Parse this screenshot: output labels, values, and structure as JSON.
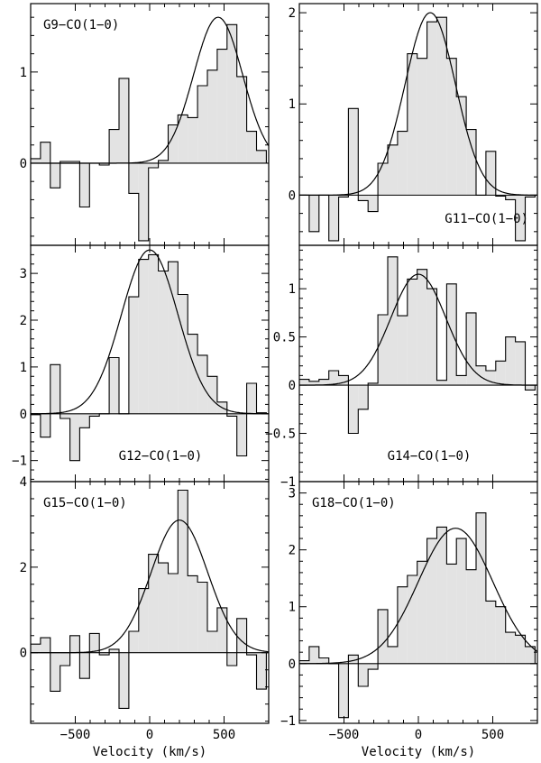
{
  "chart_data": [
    {
      "type": "bar",
      "label": "G9-CO(1-0)",
      "label_placement": "top-left",
      "x_range": [
        -800,
        800
      ],
      "ylim": [
        -0.9,
        1.75
      ],
      "yticks": [
        0,
        1
      ],
      "bin_width_kms": 66,
      "spectrum": [
        {
          "v": -800,
          "f": 0.05
        },
        {
          "v": -734,
          "f": 0.23
        },
        {
          "v": -668,
          "f": -0.27
        },
        {
          "v": -602,
          "f": 0.02
        },
        {
          "v": -536,
          "f": 0.02
        },
        {
          "v": -470,
          "f": -0.48
        },
        {
          "v": -404,
          "f": 0.0
        },
        {
          "v": -338,
          "f": -0.02
        },
        {
          "v": -272,
          "f": 0.37
        },
        {
          "v": -206,
          "f": 0.93
        },
        {
          "v": -140,
          "f": -0.33
        },
        {
          "v": -74,
          "f": -0.85
        },
        {
          "v": -8,
          "f": -0.05
        },
        {
          "v": 58,
          "f": 0.03
        },
        {
          "v": 124,
          "f": 0.42
        },
        {
          "v": 190,
          "f": 0.53
        },
        {
          "v": 256,
          "f": 0.5
        },
        {
          "v": 322,
          "f": 0.85
        },
        {
          "v": 388,
          "f": 1.02
        },
        {
          "v": 454,
          "f": 1.25
        },
        {
          "v": 520,
          "f": 1.52
        },
        {
          "v": 586,
          "f": 0.95
        },
        {
          "v": 652,
          "f": 0.35
        },
        {
          "v": 718,
          "f": 0.14
        }
      ],
      "gaussian_fit": {
        "amplitude": 1.6,
        "center": 460,
        "sigma": 165
      }
    },
    {
      "type": "bar",
      "label": "G11-CO(1-0)",
      "label_placement": "bottom-right",
      "x_range": [
        -800,
        800
      ],
      "ylim": [
        -0.55,
        2.1
      ],
      "yticks": [
        0,
        1,
        2
      ],
      "bin_width_kms": 66,
      "spectrum": [
        {
          "v": -800,
          "f": 0.0
        },
        {
          "v": -734,
          "f": -0.4
        },
        {
          "v": -668,
          "f": 0.0
        },
        {
          "v": -602,
          "f": -0.5
        },
        {
          "v": -536,
          "f": -0.02
        },
        {
          "v": -470,
          "f": 0.95
        },
        {
          "v": -404,
          "f": -0.06
        },
        {
          "v": -338,
          "f": -0.18
        },
        {
          "v": -272,
          "f": 0.35
        },
        {
          "v": -206,
          "f": 0.55
        },
        {
          "v": -140,
          "f": 0.7
        },
        {
          "v": -74,
          "f": 1.55
        },
        {
          "v": -8,
          "f": 1.5
        },
        {
          "v": 58,
          "f": 1.9
        },
        {
          "v": 124,
          "f": 1.95
        },
        {
          "v": 190,
          "f": 1.5
        },
        {
          "v": 256,
          "f": 1.08
        },
        {
          "v": 322,
          "f": 0.72
        },
        {
          "v": 388,
          "f": 0.0
        },
        {
          "v": 454,
          "f": 0.48
        },
        {
          "v": 520,
          "f": -0.01
        },
        {
          "v": 586,
          "f": -0.05
        },
        {
          "v": 652,
          "f": -0.5
        },
        {
          "v": 718,
          "f": -0.02
        }
      ],
      "gaussian_fit": {
        "amplitude": 2.0,
        "center": 80,
        "sigma": 170
      }
    },
    {
      "type": "bar",
      "label": "G12-CO(1-0)",
      "label_placement": "bottom-center",
      "x_range": [
        -800,
        800
      ],
      "ylim": [
        -1.45,
        3.6
      ],
      "yticks": [
        -1,
        0,
        1,
        2,
        3
      ],
      "bin_width_kms": 66,
      "spectrum": [
        {
          "v": -800,
          "f": -0.02
        },
        {
          "v": -734,
          "f": -0.5
        },
        {
          "v": -668,
          "f": 1.05
        },
        {
          "v": -602,
          "f": -0.1
        },
        {
          "v": -536,
          "f": -1.0
        },
        {
          "v": -470,
          "f": -0.3
        },
        {
          "v": -404,
          "f": -0.05
        },
        {
          "v": -338,
          "f": 0.0
        },
        {
          "v": -272,
          "f": 1.2
        },
        {
          "v": -206,
          "f": 0.0
        },
        {
          "v": -140,
          "f": 2.5
        },
        {
          "v": -74,
          "f": 3.3
        },
        {
          "v": -8,
          "f": 3.4
        },
        {
          "v": 58,
          "f": 3.05
        },
        {
          "v": 124,
          "f": 3.25
        },
        {
          "v": 190,
          "f": 2.55
        },
        {
          "v": 256,
          "f": 1.7
        },
        {
          "v": 322,
          "f": 1.25
        },
        {
          "v": 388,
          "f": 0.8
        },
        {
          "v": 454,
          "f": 0.25
        },
        {
          "v": 520,
          "f": -0.05
        },
        {
          "v": 586,
          "f": -0.9
        },
        {
          "v": 652,
          "f": 0.65
        },
        {
          "v": 718,
          "f": 0.02
        }
      ],
      "gaussian_fit": {
        "amplitude": 3.5,
        "center": 0,
        "sigma": 190
      }
    },
    {
      "type": "bar",
      "label": "G14-CO(1-0)",
      "label_placement": "bottom-center",
      "x_range": [
        -800,
        800
      ],
      "ylim": [
        -1.0,
        1.45
      ],
      "yticks": [
        -1,
        -0.5,
        0,
        0.5,
        1
      ],
      "bin_width_kms": 66,
      "spectrum": [
        {
          "v": -800,
          "f": 0.06
        },
        {
          "v": -734,
          "f": 0.04
        },
        {
          "v": -668,
          "f": 0.06
        },
        {
          "v": -602,
          "f": 0.15
        },
        {
          "v": -536,
          "f": 0.1
        },
        {
          "v": -470,
          "f": -0.5
        },
        {
          "v": -404,
          "f": -0.25
        },
        {
          "v": -338,
          "f": 0.02
        },
        {
          "v": -272,
          "f": 0.73
        },
        {
          "v": -206,
          "f": 1.33
        },
        {
          "v": -140,
          "f": 0.72
        },
        {
          "v": -74,
          "f": 1.1
        },
        {
          "v": -8,
          "f": 1.2
        },
        {
          "v": 58,
          "f": 1.0
        },
        {
          "v": 124,
          "f": 0.05
        },
        {
          "v": 190,
          "f": 1.05
        },
        {
          "v": 256,
          "f": 0.1
        },
        {
          "v": 322,
          "f": 0.75
        },
        {
          "v": 388,
          "f": 0.2
        },
        {
          "v": 454,
          "f": 0.15
        },
        {
          "v": 520,
          "f": 0.25
        },
        {
          "v": 586,
          "f": 0.5
        },
        {
          "v": 652,
          "f": 0.45
        },
        {
          "v": 718,
          "f": -0.05
        }
      ],
      "gaussian_fit": {
        "amplitude": 1.15,
        "center": 0,
        "sigma": 185
      }
    },
    {
      "type": "bar",
      "label": "G15-CO(1-0)",
      "label_placement": "top-left",
      "x_range": [
        -800,
        800
      ],
      "ylim": [
        -1.65,
        4.0
      ],
      "yticks": [
        0,
        2,
        4
      ],
      "xticks": [
        -500,
        0,
        500
      ],
      "bin_width_kms": 66,
      "spectrum": [
        {
          "v": -800,
          "f": 0.2
        },
        {
          "v": -734,
          "f": 0.35
        },
        {
          "v": -668,
          "f": -0.9
        },
        {
          "v": -602,
          "f": -0.3
        },
        {
          "v": -536,
          "f": 0.4
        },
        {
          "v": -470,
          "f": -0.6
        },
        {
          "v": -404,
          "f": 0.45
        },
        {
          "v": -338,
          "f": -0.05
        },
        {
          "v": -272,
          "f": 0.08
        },
        {
          "v": -206,
          "f": -1.3
        },
        {
          "v": -140,
          "f": 0.5
        },
        {
          "v": -74,
          "f": 1.5
        },
        {
          "v": -8,
          "f": 2.3
        },
        {
          "v": 58,
          "f": 2.1
        },
        {
          "v": 124,
          "f": 1.85
        },
        {
          "v": 190,
          "f": 3.8
        },
        {
          "v": 256,
          "f": 1.8
        },
        {
          "v": 322,
          "f": 1.65
        },
        {
          "v": 388,
          "f": 0.5
        },
        {
          "v": 454,
          "f": 1.05
        },
        {
          "v": 520,
          "f": -0.3
        },
        {
          "v": 586,
          "f": 0.8
        },
        {
          "v": 652,
          "f": -0.05
        },
        {
          "v": 718,
          "f": -0.85
        }
      ],
      "gaussian_fit": {
        "amplitude": 3.1,
        "center": 200,
        "sigma": 190
      },
      "xlabel": "Velocity (km/s)"
    },
    {
      "type": "bar",
      "label": "G18-CO(1-0)",
      "label_placement": "top-left",
      "x_range": [
        -800,
        800
      ],
      "ylim": [
        -1.05,
        3.2
      ],
      "yticks": [
        -1,
        0,
        1,
        2,
        3
      ],
      "xticks": [
        -500,
        0,
        500
      ],
      "bin_width_kms": 66,
      "spectrum": [
        {
          "v": -800,
          "f": 0.05
        },
        {
          "v": -734,
          "f": 0.3
        },
        {
          "v": -668,
          "f": 0.1
        },
        {
          "v": -602,
          "f": 0.0
        },
        {
          "v": -536,
          "f": -0.95
        },
        {
          "v": -470,
          "f": 0.15
        },
        {
          "v": -404,
          "f": -0.4
        },
        {
          "v": -338,
          "f": -0.1
        },
        {
          "v": -272,
          "f": 0.95
        },
        {
          "v": -206,
          "f": 0.3
        },
        {
          "v": -140,
          "f": 1.35
        },
        {
          "v": -74,
          "f": 1.55
        },
        {
          "v": -8,
          "f": 1.8
        },
        {
          "v": 58,
          "f": 2.2
        },
        {
          "v": 124,
          "f": 2.4
        },
        {
          "v": 190,
          "f": 1.75
        },
        {
          "v": 256,
          "f": 2.2
        },
        {
          "v": 322,
          "f": 1.65
        },
        {
          "v": 388,
          "f": 2.65
        },
        {
          "v": 454,
          "f": 1.1
        },
        {
          "v": 520,
          "f": 1.0
        },
        {
          "v": 586,
          "f": 0.55
        },
        {
          "v": 652,
          "f": 0.5
        },
        {
          "v": 718,
          "f": 0.3
        }
      ],
      "gaussian_fit": {
        "amplitude": 2.38,
        "center": 250,
        "sigma": 250
      },
      "xlabel": "Velocity (km/s)"
    }
  ]
}
